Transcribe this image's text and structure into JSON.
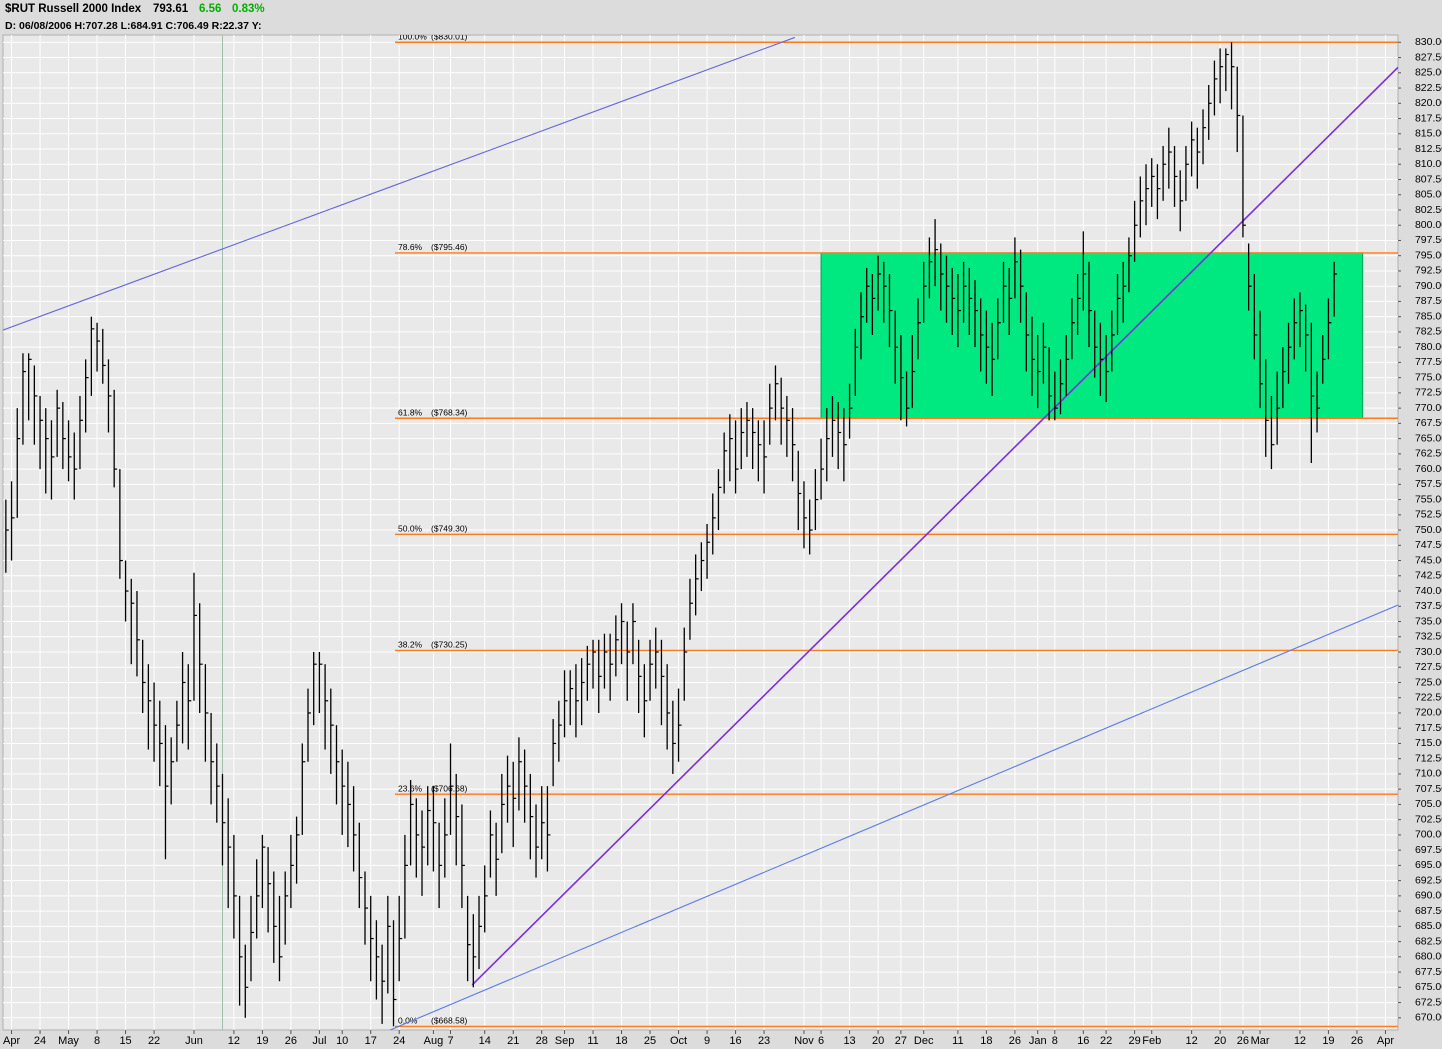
{
  "chart_data": {
    "type": "hlc",
    "title": "$RUT Russell 2000 Index",
    "last": 793.61,
    "change": 6.56,
    "change_pct": "0.83%",
    "info": "D: 06/08/2006 H:707.28 L:684.91 C:706.49 R:22.37 Y:",
    "color": "#000000",
    "grid": true,
    "xlim": [
      -0.5,
      244.2
    ],
    "ylim": [
      668,
      831.2
    ],
    "xticks": [
      {
        "value": 1,
        "label": "Apr"
      },
      {
        "value": 6,
        "label": "24"
      },
      {
        "value": 11,
        "label": "May"
      },
      {
        "value": 16,
        "label": "8"
      },
      {
        "value": 21,
        "label": "15"
      },
      {
        "value": 26,
        "label": "22"
      },
      {
        "value": 33,
        "label": "Jun"
      },
      {
        "value": 40,
        "label": "12"
      },
      {
        "value": 45,
        "label": "19"
      },
      {
        "value": 50,
        "label": "26"
      },
      {
        "value": 55,
        "label": "Jul"
      },
      {
        "value": 59,
        "label": "10"
      },
      {
        "value": 64,
        "label": "17"
      },
      {
        "value": 69,
        "label": "24"
      },
      {
        "value": 75,
        "label": "Aug"
      },
      {
        "value": 78,
        "label": "7"
      },
      {
        "value": 84,
        "label": "14"
      },
      {
        "value": 89,
        "label": "21"
      },
      {
        "value": 94,
        "label": "28"
      },
      {
        "value": 98,
        "label": "Sep"
      },
      {
        "value": 103,
        "label": "11"
      },
      {
        "value": 108,
        "label": "18"
      },
      {
        "value": 113,
        "label": "25"
      },
      {
        "value": 118,
        "label": "Oct"
      },
      {
        "value": 123,
        "label": "9"
      },
      {
        "value": 128,
        "label": "16"
      },
      {
        "value": 133,
        "label": "23"
      },
      {
        "value": 140,
        "label": "Nov"
      },
      {
        "value": 143,
        "label": "6"
      },
      {
        "value": 148,
        "label": "13"
      },
      {
        "value": 153,
        "label": "20"
      },
      {
        "value": 157,
        "label": "27"
      },
      {
        "value": 161,
        "label": "Dec"
      },
      {
        "value": 167,
        "label": "11"
      },
      {
        "value": 172,
        "label": "18"
      },
      {
        "value": 177,
        "label": "26"
      },
      {
        "value": 181,
        "label": "Jan"
      },
      {
        "value": 184,
        "label": "8"
      },
      {
        "value": 189,
        "label": "16"
      },
      {
        "value": 193,
        "label": "22"
      },
      {
        "value": 198,
        "label": "29"
      },
      {
        "value": 201,
        "label": "Feb"
      },
      {
        "value": 208,
        "label": "12"
      },
      {
        "value": 213,
        "label": "20"
      },
      {
        "value": 217,
        "label": "26"
      },
      {
        "value": 220,
        "label": "Mar"
      },
      {
        "value": 227,
        "label": "12"
      },
      {
        "value": 232,
        "label": "19"
      },
      {
        "value": 237,
        "label": "26"
      },
      {
        "value": 242,
        "label": "Apr"
      }
    ],
    "yticks": [
      {
        "value": 830,
        "label": "830.00"
      },
      {
        "value": 827.5,
        "label": "827.50"
      },
      {
        "value": 825,
        "label": "825.00"
      },
      {
        "value": 822.5,
        "label": "822.50"
      },
      {
        "value": 820,
        "label": "820.00"
      },
      {
        "value": 817.5,
        "label": "817.50"
      },
      {
        "value": 815,
        "label": "815.00"
      },
      {
        "value": 812.5,
        "label": "812.50"
      },
      {
        "value": 810,
        "label": "810.00"
      },
      {
        "value": 807.5,
        "label": "807.50"
      },
      {
        "value": 805,
        "label": "805.00"
      },
      {
        "value": 802.5,
        "label": "802.50"
      },
      {
        "value": 800,
        "label": "800.00"
      },
      {
        "value": 797.5,
        "label": "797.50"
      },
      {
        "value": 795,
        "label": "795.00"
      },
      {
        "value": 792.5,
        "label": "792.50"
      },
      {
        "value": 790,
        "label": "790.00"
      },
      {
        "value": 787.5,
        "label": "787.50"
      },
      {
        "value": 785,
        "label": "785.00"
      },
      {
        "value": 782.5,
        "label": "782.50"
      },
      {
        "value": 780,
        "label": "780.00"
      },
      {
        "value": 777.5,
        "label": "777.50"
      },
      {
        "value": 775,
        "label": "775.00"
      },
      {
        "value": 772.5,
        "label": "772.50"
      },
      {
        "value": 770,
        "label": "770.00"
      },
      {
        "value": 767.5,
        "label": "767.50"
      },
      {
        "value": 765,
        "label": "765.00"
      },
      {
        "value": 762.5,
        "label": "762.50"
      },
      {
        "value": 760,
        "label": "760.00"
      },
      {
        "value": 757.5,
        "label": "757.50"
      },
      {
        "value": 755,
        "label": "755.00"
      },
      {
        "value": 752.5,
        "label": "752.50"
      },
      {
        "value": 750,
        "label": "750.00"
      },
      {
        "value": 747.5,
        "label": "747.50"
      },
      {
        "value": 745,
        "label": "745.00"
      },
      {
        "value": 742.5,
        "label": "742.50"
      },
      {
        "value": 740,
        "label": "740.00"
      },
      {
        "value": 737.5,
        "label": "737.50"
      },
      {
        "value": 735,
        "label": "735.00"
      },
      {
        "value": 732.5,
        "label": "732.50"
      },
      {
        "value": 730,
        "label": "730.00"
      },
      {
        "value": 727.5,
        "label": "727.50"
      },
      {
        "value": 725,
        "label": "725.00"
      },
      {
        "value": 722.5,
        "label": "722.50"
      },
      {
        "value": 720,
        "label": "720.00"
      },
      {
        "value": 717.5,
        "label": "717.50"
      },
      {
        "value": 715,
        "label": "715.00"
      },
      {
        "value": 712.5,
        "label": "712.50"
      },
      {
        "value": 710,
        "label": "710.00"
      },
      {
        "value": 707.5,
        "label": "707.50"
      },
      {
        "value": 705,
        "label": "705.00"
      },
      {
        "value": 702.5,
        "label": "702.50"
      },
      {
        "value": 700,
        "label": "700.00"
      },
      {
        "value": 697.5,
        "label": "697.50"
      },
      {
        "value": 695,
        "label": "695.00"
      },
      {
        "value": 692.5,
        "label": "692.50"
      },
      {
        "value": 690,
        "label": "690.00"
      },
      {
        "value": 687.5,
        "label": "687.50"
      },
      {
        "value": 685,
        "label": "685.00"
      },
      {
        "value": 682.5,
        "label": "682.50"
      },
      {
        "value": 680,
        "label": "680.00"
      },
      {
        "value": 677.5,
        "label": "677.50"
      },
      {
        "value": 675,
        "label": "675.00"
      },
      {
        "value": 672.5,
        "label": "672.50"
      },
      {
        "value": 670,
        "label": "670.00"
      }
    ],
    "high": [
      755,
      758,
      770,
      779,
      779,
      777,
      772,
      770,
      768,
      773,
      771,
      768,
      766,
      772,
      778,
      785,
      784,
      783,
      778,
      773,
      760,
      745,
      742,
      740,
      732,
      728,
      725,
      722,
      718,
      716,
      722,
      730,
      728,
      743,
      738,
      728,
      720,
      715,
      710,
      706,
      700,
      690,
      682,
      690,
      696,
      700,
      698,
      694,
      690,
      694,
      700,
      703,
      715,
      724,
      730,
      730,
      728,
      724,
      718,
      714,
      712,
      708,
      702,
      694,
      690,
      686,
      682,
      690,
      686,
      690,
      700,
      709,
      706,
      704,
      708,
      708,
      702,
      706,
      715,
      710,
      705,
      690,
      687,
      690,
      695,
      704,
      702,
      710,
      713,
      712,
      716,
      714,
      710,
      705,
      708,
      708,
      719,
      722,
      727,
      727,
      728,
      729,
      731,
      732,
      732,
      733,
      733,
      736,
      738,
      735,
      738,
      732,
      728,
      732,
      734,
      732,
      728,
      722,
      724,
      734,
      742,
      746,
      748,
      751,
      756,
      760,
      766,
      769,
      768,
      770,
      771,
      770,
      768,
      768,
      774,
      777,
      775,
      772,
      770,
      763,
      758,
      755,
      760,
      765,
      770,
      772,
      771,
      770,
      774,
      783,
      789,
      793,
      792,
      795,
      794,
      792,
      786,
      782,
      776,
      782,
      788,
      794,
      798,
      801,
      797,
      795,
      793,
      792,
      794,
      793,
      791,
      788,
      786,
      784,
      788,
      794,
      793,
      798,
      796,
      789,
      785,
      782,
      784,
      780,
      776,
      778,
      782,
      788,
      792,
      799,
      794,
      786,
      784,
      782,
      786,
      792,
      794,
      798,
      804,
      808,
      810,
      811,
      810,
      813,
      816,
      813,
      809,
      813,
      817,
      816,
      819,
      823,
      827,
      829,
      829,
      830.01,
      826,
      818,
      797,
      792,
      786,
      778,
      772,
      776,
      780,
      784,
      788,
      789,
      787,
      784,
      776,
      782,
      788,
      794
    ],
    "low": [
      743,
      745,
      752,
      764,
      768,
      764,
      760,
      756,
      755,
      762,
      760,
      758,
      755,
      760,
      766,
      772,
      776,
      774,
      766,
      757,
      742,
      735,
      728,
      726,
      720,
      714,
      712,
      708,
      696,
      705,
      712,
      715,
      714,
      722,
      720,
      712,
      705,
      702,
      695,
      688,
      683,
      672,
      670,
      676,
      683,
      688,
      684,
      679,
      676,
      682,
      688,
      692,
      700,
      712,
      718,
      720,
      714,
      710,
      705,
      700,
      698,
      694,
      688,
      682,
      676,
      673,
      669,
      674,
      668.6,
      676,
      683,
      695,
      693,
      690,
      695,
      694,
      688,
      693,
      700,
      695,
      688,
      676,
      675,
      678,
      684,
      693,
      690,
      697,
      702,
      698,
      704,
      702,
      696,
      693,
      696,
      694,
      708,
      712,
      716,
      718,
      716,
      718,
      722,
      724,
      720,
      724,
      722,
      726,
      728,
      722,
      728,
      720,
      716,
      722,
      724,
      718,
      714,
      710,
      712,
      722,
      732,
      736,
      740,
      742,
      746,
      750,
      756,
      758,
      756,
      760,
      762,
      760,
      758,
      756,
      764,
      768,
      764,
      762,
      758,
      750,
      747,
      746,
      750,
      755,
      758,
      762,
      760,
      758,
      765,
      772,
      778,
      784,
      782,
      786,
      784,
      780,
      774,
      768,
      767,
      770,
      778,
      784,
      788,
      790,
      786,
      784,
      782,
      780,
      784,
      782,
      780,
      776,
      774,
      772,
      778,
      784,
      782,
      788,
      784,
      776,
      772,
      770,
      774,
      768,
      768,
      769,
      772,
      778,
      782,
      786,
      780,
      775,
      772,
      771,
      776,
      782,
      784,
      789,
      794,
      798,
      800,
      803,
      801,
      804,
      806,
      803,
      799,
      804,
      808,
      806,
      810,
      814,
      818,
      820,
      822,
      819,
      812,
      798,
      786,
      778,
      770,
      762,
      760,
      764,
      770,
      774,
      778,
      780,
      776,
      761,
      766,
      774,
      778,
      785
    ],
    "close": [
      750,
      752,
      765,
      776,
      778,
      772,
      768,
      765,
      762,
      770,
      765,
      762,
      760,
      768,
      775,
      783,
      781,
      777,
      772,
      760,
      745,
      740,
      738,
      732,
      725,
      722,
      718,
      715,
      708,
      712,
      718,
      725,
      722,
      736,
      728,
      720,
      712,
      708,
      702,
      698,
      690,
      680,
      675,
      684,
      690,
      698,
      692,
      685,
      680,
      690,
      695,
      700,
      712,
      720,
      728,
      728,
      722,
      718,
      712,
      708,
      705,
      700,
      693,
      688,
      683,
      680,
      676,
      685,
      673,
      683,
      695,
      705,
      700,
      698,
      704,
      702,
      695,
      700,
      708,
      703,
      695,
      682,
      680,
      685,
      690,
      700,
      696,
      705,
      708,
      706,
      712,
      708,
      703,
      698,
      702,
      700,
      715,
      718,
      722,
      724,
      722,
      725,
      728,
      730,
      726,
      730,
      728,
      732,
      735,
      730,
      735,
      726,
      722,
      728,
      730,
      726,
      720,
      715,
      718,
      730,
      738,
      742,
      745,
      748,
      752,
      757,
      763,
      765,
      760,
      766,
      768,
      766,
      764,
      762,
      770,
      774,
      770,
      768,
      764,
      756,
      752,
      750,
      755,
      760,
      765,
      768,
      766,
      764,
      770,
      780,
      785,
      790,
      788,
      792,
      790,
      786,
      780,
      775,
      770,
      776,
      784,
      790,
      794,
      796,
      792,
      790,
      788,
      786,
      790,
      788,
      786,
      782,
      780,
      778,
      784,
      790,
      788,
      794,
      790,
      782,
      778,
      776,
      780,
      772,
      770,
      774,
      778,
      784,
      788,
      792,
      786,
      780,
      778,
      776,
      782,
      788,
      790,
      795,
      800,
      804,
      806,
      808,
      806,
      810,
      812,
      808,
      804,
      810,
      814,
      812,
      816,
      820,
      824,
      826,
      828,
      826,
      818,
      800,
      790,
      782,
      774,
      768,
      764,
      770,
      776,
      780,
      784,
      786,
      782,
      772,
      770,
      778,
      784,
      792
    ],
    "fib_color": "#ff7a1a",
    "fib": [
      {
        "label": "100.0%",
        "price": "($830.01)",
        "value": 830.01
      },
      {
        "label": "78.6%",
        "price": "($795.46)",
        "value": 795.46
      },
      {
        "label": "61.8%",
        "price": "($768.34)",
        "value": 768.34
      },
      {
        "label": "50.0%",
        "price": "($749.30)",
        "value": 749.3
      },
      {
        "label": "38.2%",
        "price": "($730.25)",
        "value": 730.25
      },
      {
        "label": "23.6%",
        "price": "($706.68)",
        "value": 706.68
      },
      {
        "label": "0.0%",
        "price": "($668.58)",
        "value": 668.58
      }
    ],
    "zone": {
      "x": [
        143,
        238
      ],
      "color": "#00e880"
    },
    "vline": {
      "x": 38,
      "color": "#9fbfa8"
    },
    "trendlines": [
      {
        "points": [
          [
            -0.5,
            782.8
          ],
          [
            138.4,
            830.8
          ]
        ],
        "color": "#6666dd"
      },
      {
        "points": [
          [
            81.8,
            675.4
          ],
          [
            244.2,
            825.9
          ]
        ],
        "color": "#7a2ee0"
      },
      {
        "points": [
          [
            67.4,
            668
          ],
          [
            244.2,
            737.7
          ]
        ],
        "color": "#5b7be8"
      }
    ]
  }
}
